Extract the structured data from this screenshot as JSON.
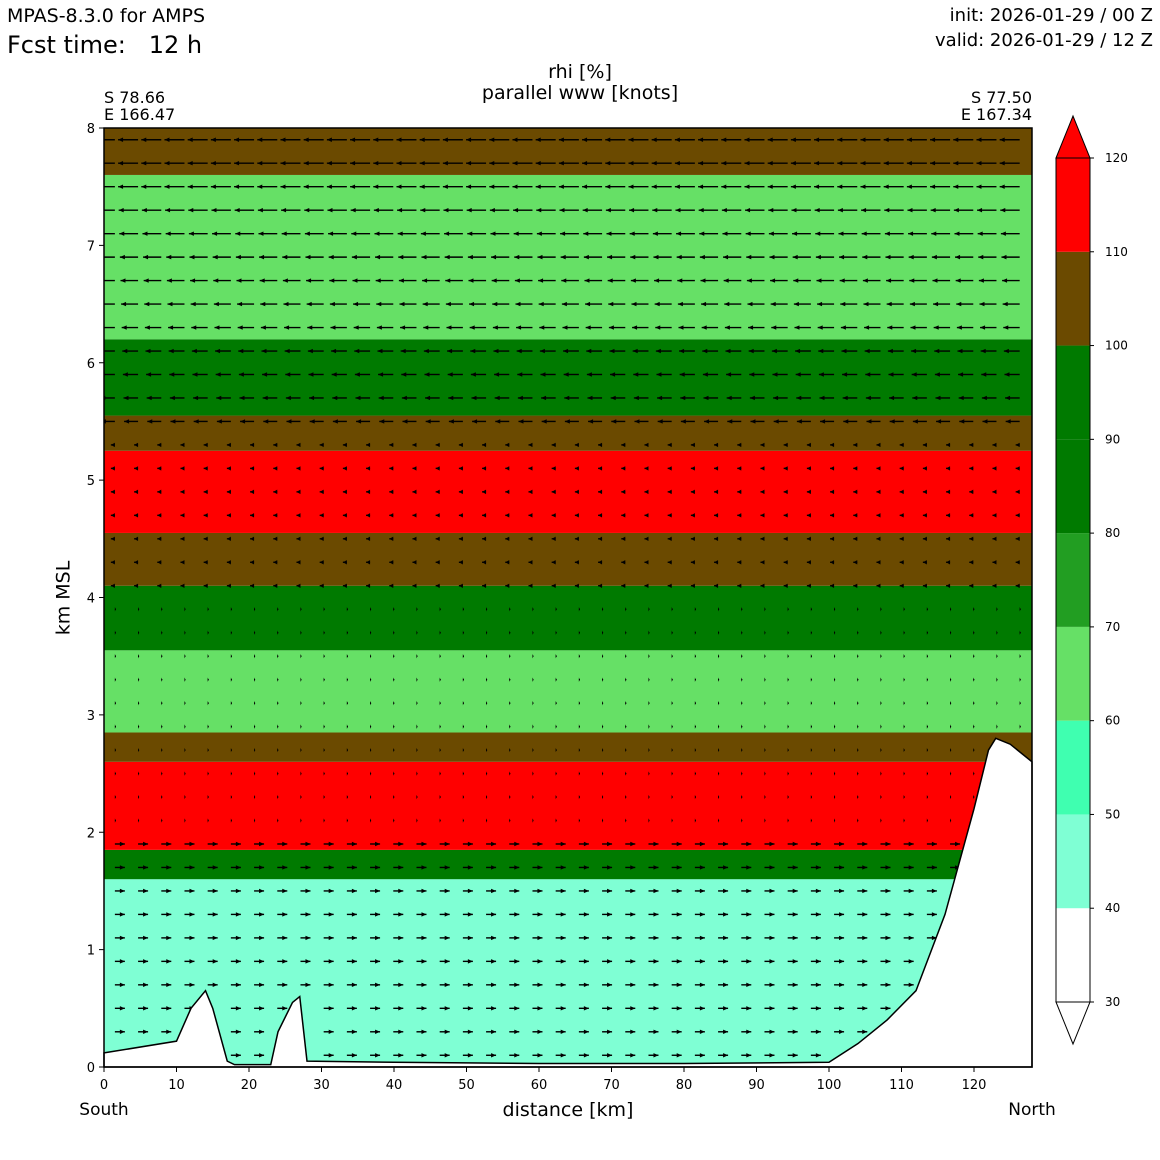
{
  "header": {
    "model": "MPAS-8.3.0 for AMPS",
    "fcst_label": "Fcst time:",
    "fcst_value": "12 h",
    "init": "init: 2026-01-29 / 00 Z",
    "valid": "valid: 2026-01-29 / 12 Z"
  },
  "chart_data": {
    "type": "heatmap",
    "title": "rhi [%]",
    "subtitle": "parallel www [knots]",
    "xlabel": "distance [km]",
    "ylabel": "km MSL",
    "xlim": [
      0,
      128
    ],
    "ylim": [
      0,
      8
    ],
    "x_ticks": [
      0,
      10,
      20,
      30,
      40,
      50,
      60,
      70,
      80,
      90,
      100,
      110,
      120
    ],
    "y_ticks": [
      0,
      1,
      2,
      3,
      4,
      5,
      6,
      7,
      8
    ],
    "endpoints": {
      "left": {
        "lat": "S 78.66",
        "lon": "E 166.47",
        "direction": "South"
      },
      "right": {
        "lat": "S 77.50",
        "lon": "E 167.34",
        "direction": "North"
      }
    },
    "colorbar": {
      "levels": [
        30,
        40,
        50,
        60,
        70,
        80,
        90,
        100,
        110,
        120
      ],
      "colors": [
        "#ffffff",
        "#7fffd4",
        "#3fffb0",
        "#66e066",
        "#229e22",
        "#007a00",
        "#007a00",
        "#6b4a00",
        "#ff0000"
      ]
    },
    "layers": [
      {
        "z0": 0.0,
        "z1": 1.6,
        "rh": 45
      },
      {
        "z0": 1.6,
        "z1": 1.85,
        "rh": 95
      },
      {
        "z0": 1.85,
        "z1": 2.6,
        "rh": 115
      },
      {
        "z0": 2.6,
        "z1": 2.85,
        "rh": 105
      },
      {
        "z0": 2.85,
        "z1": 3.55,
        "rh": 65
      },
      {
        "z0": 3.55,
        "z1": 4.1,
        "rh": 85
      },
      {
        "z0": 4.1,
        "z1": 4.55,
        "rh": 105
      },
      {
        "z0": 4.55,
        "z1": 5.25,
        "rh": 115
      },
      {
        "z0": 5.25,
        "z1": 5.55,
        "rh": 105
      },
      {
        "z0": 5.55,
        "z1": 6.2,
        "rh": 85
      },
      {
        "z0": 6.2,
        "z1": 7.6,
        "rh": 62
      },
      {
        "z0": 7.6,
        "z1": 8.0,
        "rh": 105
      }
    ],
    "terrain": [
      [
        0,
        0.12
      ],
      [
        10,
        0.22
      ],
      [
        12,
        0.5
      ],
      [
        14,
        0.65
      ],
      [
        15,
        0.5
      ],
      [
        17,
        0.05
      ],
      [
        18,
        0.02
      ],
      [
        23,
        0.02
      ],
      [
        24,
        0.3
      ],
      [
        26,
        0.55
      ],
      [
        27,
        0.6
      ],
      [
        28,
        0.05
      ],
      [
        40,
        0.04
      ],
      [
        60,
        0.03
      ],
      [
        80,
        0.03
      ],
      [
        100,
        0.04
      ],
      [
        104,
        0.2
      ],
      [
        108,
        0.4
      ],
      [
        112,
        0.65
      ],
      [
        116,
        1.3
      ],
      [
        120,
        2.2
      ],
      [
        122,
        2.7
      ],
      [
        123,
        2.8
      ],
      [
        125,
        2.75
      ],
      [
        128,
        2.6
      ]
    ],
    "wind_vectors": {
      "direction": "negative-x above 5.5 km, positive-x below 2 km",
      "max_knots": 30
    }
  }
}
